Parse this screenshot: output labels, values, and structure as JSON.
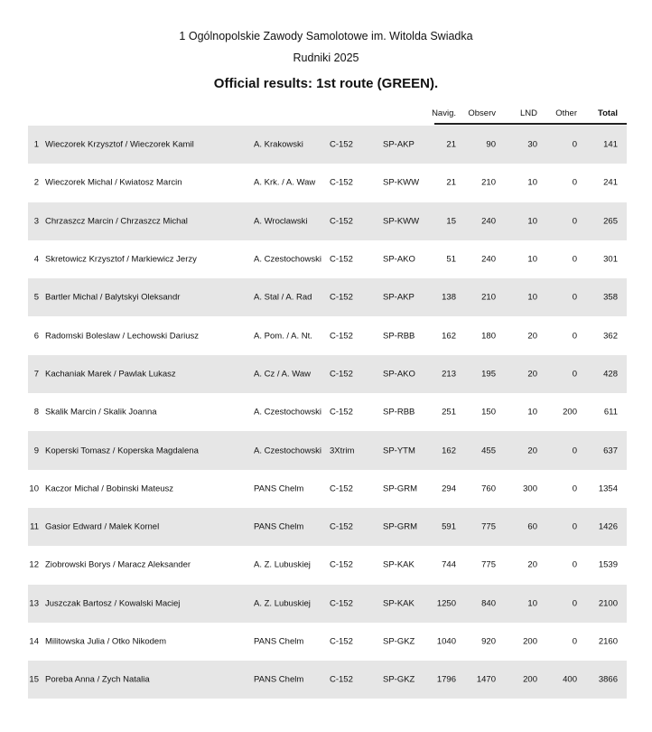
{
  "document": {
    "title": "1 Ogólnopolskie Zawody Samolotowe im. Witolda Swiadka",
    "subtitle": "Rudniki 2025",
    "heading": "Official results:  1st route (GREEN)."
  },
  "table": {
    "columns": {
      "navig": "Navig.",
      "observ": "Observ",
      "lnd": "LND",
      "other": "Other",
      "total": "Total"
    },
    "rows": [
      {
        "rank": "1",
        "crew": "Wieczorek Krzysztof / Wieczorek Kamil",
        "club": "A. Krakowski",
        "plane": "C-152",
        "reg": "SP-AKP",
        "navig": "21",
        "observ": "90",
        "lnd": "30",
        "other": "0",
        "total": "141"
      },
      {
        "rank": "2",
        "crew": "Wieczorek Michal / Kwiatosz Marcin",
        "club": "A. Krk. / A. Waw",
        "plane": "C-152",
        "reg": "SP-KWW",
        "navig": "21",
        "observ": "210",
        "lnd": "10",
        "other": "0",
        "total": "241"
      },
      {
        "rank": "3",
        "crew": "Chrzaszcz Marcin / Chrzaszcz Michal",
        "club": "A. Wroclawski",
        "plane": "C-152",
        "reg": "SP-KWW",
        "navig": "15",
        "observ": "240",
        "lnd": "10",
        "other": "0",
        "total": "265"
      },
      {
        "rank": "4",
        "crew": "Skretowicz Krzysztof / Markiewicz Jerzy",
        "club": "A. Czestochowski",
        "plane": "C-152",
        "reg": "SP-AKO",
        "navig": "51",
        "observ": "240",
        "lnd": "10",
        "other": "0",
        "total": "301"
      },
      {
        "rank": "5",
        "crew": "Bartler Michal / Balytskyi Oleksandr",
        "club": "A. Stal / A. Rad",
        "plane": "C-152",
        "reg": "SP-AKP",
        "navig": "138",
        "observ": "210",
        "lnd": "10",
        "other": "0",
        "total": "358"
      },
      {
        "rank": "6",
        "crew": "Radomski Boleslaw / Lechowski Dariusz",
        "club": "A. Pom. / A. Nt.",
        "plane": "C-152",
        "reg": "SP-RBB",
        "navig": "162",
        "observ": "180",
        "lnd": "20",
        "other": "0",
        "total": "362"
      },
      {
        "rank": "7",
        "crew": "Kachaniak Marek / Pawlak Lukasz",
        "club": "A. Cz / A. Waw",
        "plane": "C-152",
        "reg": "SP-AKO",
        "navig": "213",
        "observ": "195",
        "lnd": "20",
        "other": "0",
        "total": "428"
      },
      {
        "rank": "8",
        "crew": "Skalik Marcin / Skalik Joanna",
        "club": "A. Czestochowski",
        "plane": "C-152",
        "reg": "SP-RBB",
        "navig": "251",
        "observ": "150",
        "lnd": "10",
        "other": "200",
        "total": "611"
      },
      {
        "rank": "9",
        "crew": "Koperski Tomasz / Koperska Magdalena",
        "club": "A. Czestochowski",
        "plane": "3Xtrim",
        "reg": "SP-YTM",
        "navig": "162",
        "observ": "455",
        "lnd": "20",
        "other": "0",
        "total": "637"
      },
      {
        "rank": "10",
        "crew": "Kaczor Michal / Bobinski Mateusz",
        "club": "PANS Chelm",
        "plane": "C-152",
        "reg": "SP-GRM",
        "navig": "294",
        "observ": "760",
        "lnd": "300",
        "other": "0",
        "total": "1354"
      },
      {
        "rank": "11",
        "crew": "Gasior Edward / Malek Kornel",
        "club": "PANS Chelm",
        "plane": "C-152",
        "reg": "SP-GRM",
        "navig": "591",
        "observ": "775",
        "lnd": "60",
        "other": "0",
        "total": "1426"
      },
      {
        "rank": "12",
        "crew": "Ziobrowski Borys / Maracz Aleksander",
        "club": "A. Z. Lubuskiej",
        "plane": "C-152",
        "reg": "SP-KAK",
        "navig": "744",
        "observ": "775",
        "lnd": "20",
        "other": "0",
        "total": "1539"
      },
      {
        "rank": "13",
        "crew": "Juszczak Bartosz / Kowalski Maciej",
        "club": "A. Z. Lubuskiej",
        "plane": "C-152",
        "reg": "SP-KAK",
        "navig": "1250",
        "observ": "840",
        "lnd": "10",
        "other": "0",
        "total": "2100"
      },
      {
        "rank": "14",
        "crew": "Militowska Julia / Otko Nikodem",
        "club": "PANS Chelm",
        "plane": "C-152",
        "reg": "SP-GKZ",
        "navig": "1040",
        "observ": "920",
        "lnd": "200",
        "other": "0",
        "total": "2160"
      },
      {
        "rank": "15",
        "crew": "Poreba Anna / Zych Natalia",
        "club": "PANS Chelm",
        "plane": "C-152",
        "reg": "SP-GKZ",
        "navig": "1796",
        "observ": "1470",
        "lnd": "200",
        "other": "400",
        "total": "3866"
      }
    ]
  }
}
